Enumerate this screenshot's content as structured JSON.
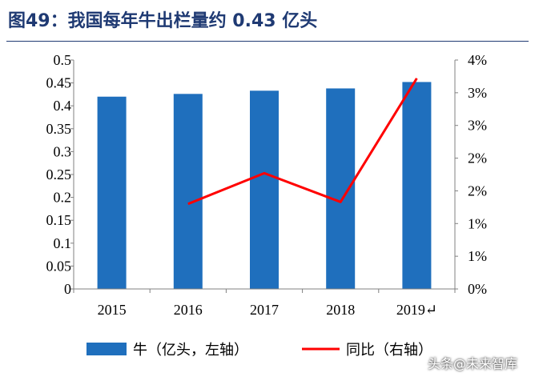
{
  "title": "图49：我国每年牛出栏量约 0.43 亿头",
  "watermark": "头条@未来智库",
  "colors": {
    "bar": "#1f6fbd",
    "line": "#ff0000",
    "axis": "#808080",
    "text": "#000000",
    "title": "#1f3a73"
  },
  "chart_data": {
    "type": "bar+line",
    "categories": [
      "2015",
      "2016",
      "2017",
      "2018",
      "2019"
    ],
    "category_tick_labels": [
      "2015",
      "2016",
      "2017",
      "2018",
      "2019↵"
    ],
    "series": [
      {
        "name": "牛（亿头，左轴）",
        "type": "bar",
        "axis": "left",
        "values": [
          0.42,
          0.426,
          0.433,
          0.438,
          0.452
        ]
      },
      {
        "name": "同比（右轴）",
        "type": "line",
        "axis": "right",
        "values": [
          null,
          0.013,
          0.0177,
          0.0133,
          0.0322
        ]
      }
    ],
    "left_axis": {
      "ylim": [
        0,
        0.5
      ],
      "ticks": [
        "0",
        "0.05",
        "0.1",
        "0.15",
        "0.2",
        "0.25",
        "0.3",
        "0.35",
        "0.4",
        "0.45",
        "0.5"
      ]
    },
    "right_axis": {
      "ylim": [
        0,
        0.035
      ],
      "ticks": [
        "0%",
        "1%",
        "1%",
        "2%",
        "2%",
        "3%",
        "3%",
        "4%"
      ]
    },
    "legend": {
      "position": "bottom"
    },
    "grid": false
  }
}
